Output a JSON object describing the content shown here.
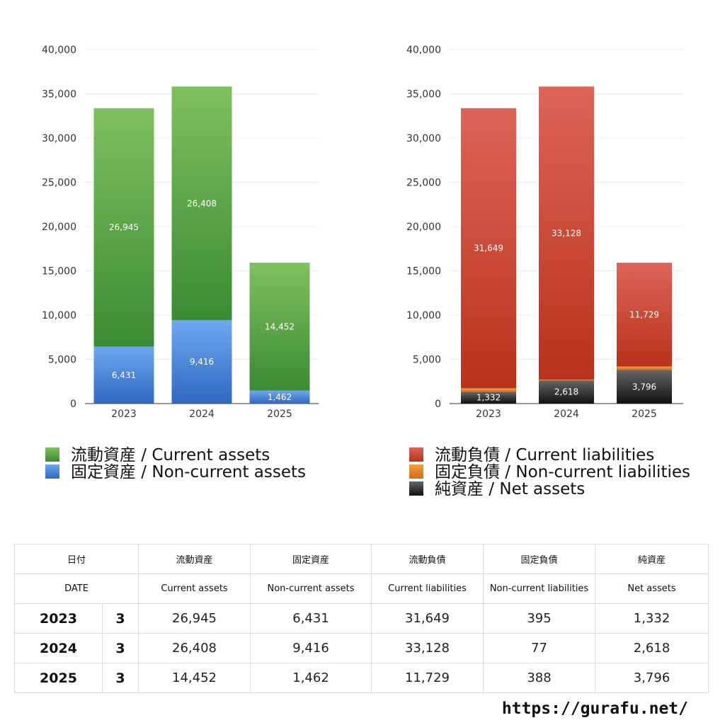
{
  "chart_data": [
    {
      "type": "bar",
      "stacked": true,
      "categories": [
        "2023",
        "2024",
        "2025"
      ],
      "ylim": [
        0,
        40000
      ],
      "yticks": [
        0,
        5000,
        10000,
        15000,
        20000,
        25000,
        30000,
        35000,
        40000
      ],
      "yticks_labels": [
        "0",
        "5,000",
        "10,000",
        "15,000",
        "20,000",
        "25,000",
        "30,000",
        "35,000",
        "40,000"
      ],
      "grid": true,
      "legend": "bottom",
      "series": [
        {
          "name": "固定資産 / Non-current assets",
          "values": [
            6431,
            9416,
            1462
          ],
          "labels": [
            "6,431",
            "9,416",
            "1,462"
          ],
          "color_top": "#6fa8ee",
          "color_bottom": "#2f68c2"
        },
        {
          "name": "流動資産 / Current assets",
          "values": [
            26945,
            26408,
            14452
          ],
          "labels": [
            "26,945",
            "26,408",
            "14,452"
          ],
          "color_top": "#80c060",
          "color_bottom": "#3b8a34"
        }
      ],
      "legend_order": [
        1,
        0
      ]
    },
    {
      "type": "bar",
      "stacked": true,
      "categories": [
        "2023",
        "2024",
        "2025"
      ],
      "ylim": [
        0,
        40000
      ],
      "yticks": [
        0,
        5000,
        10000,
        15000,
        20000,
        25000,
        30000,
        35000,
        40000
      ],
      "yticks_labels": [
        "0",
        "5,000",
        "10,000",
        "15,000",
        "20,000",
        "25,000",
        "30,000",
        "35,000",
        "40,000"
      ],
      "grid": true,
      "legend": "bottom",
      "series": [
        {
          "name": "純資産 / Net assets",
          "values": [
            1332,
            2618,
            3796
          ],
          "labels": [
            "1,332",
            "2,618",
            "3,796"
          ],
          "color_top": "#666666",
          "color_bottom": "#111111"
        },
        {
          "name": "固定負債 / Non-current liabilities",
          "values": [
            395,
            77,
            388
          ],
          "labels": [
            "395",
            "77",
            "388"
          ],
          "color_top": "#f0a040",
          "color_bottom": "#d86a1c"
        },
        {
          "name": "流動負債 / Current liabilities",
          "values": [
            31649,
            33128,
            11729
          ],
          "labels": [
            "31,649",
            "33,128",
            "11,729"
          ],
          "color_top": "#dd6458",
          "color_bottom": "#b8321c"
        }
      ],
      "legend_order": [
        2,
        1,
        0
      ]
    }
  ],
  "table": {
    "header_jp": [
      "日付",
      "流動資産",
      "固定資産",
      "流動負債",
      "固定負債",
      "純資産"
    ],
    "header_en": [
      "DATE",
      "Current assets",
      "Non-current assets",
      "Current liabilities",
      "Non-current liabilities",
      "Net assets"
    ],
    "rows": [
      {
        "year": "2023",
        "month": "3",
        "values": [
          "26,945",
          "6,431",
          "31,649",
          "395",
          "1,332"
        ]
      },
      {
        "year": "2024",
        "month": "3",
        "values": [
          "26,408",
          "9,416",
          "33,128",
          "77",
          "2,618"
        ]
      },
      {
        "year": "2025",
        "month": "3",
        "values": [
          "14,452",
          "1,462",
          "11,729",
          "388",
          "3,796"
        ]
      }
    ]
  },
  "source_url": "https://gurafu.net/"
}
